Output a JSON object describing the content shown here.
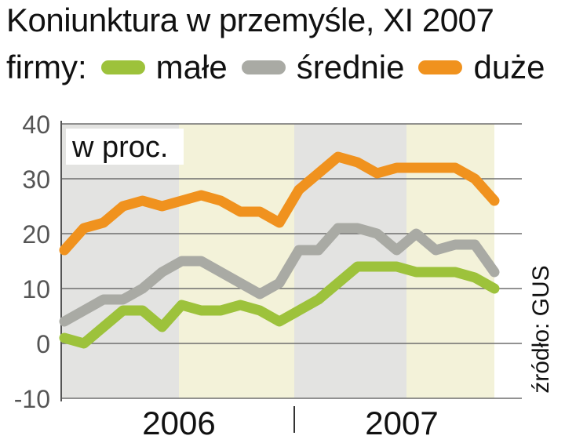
{
  "title": "Koniunktura w przemyśle, XI 2007",
  "legend": {
    "label": "firmy:",
    "items": [
      {
        "name": "małe",
        "color": "#9dc23b"
      },
      {
        "name": "średnie",
        "color": "#a9aaa4"
      },
      {
        "name": "duże",
        "color": "#f0921e"
      }
    ]
  },
  "source": "źródło: GUS",
  "chart_data": {
    "type": "line",
    "unit_label": "w proc.",
    "ylim": [
      -10,
      40
    ],
    "yticks": [
      "40",
      "30",
      "20",
      "10",
      "0",
      "-10"
    ],
    "year_labels": [
      "2006",
      "2007"
    ],
    "x": [
      "2006-01",
      "2006-02",
      "2006-03",
      "2006-04",
      "2006-05",
      "2006-06",
      "2006-07",
      "2006-08",
      "2006-09",
      "2006-10",
      "2006-11",
      "2006-12",
      "2007-01",
      "2007-02",
      "2007-03",
      "2007-04",
      "2007-05",
      "2007-06",
      "2007-07",
      "2007-08",
      "2007-09",
      "2007-10",
      "2007-11"
    ],
    "series": [
      {
        "name": "małe",
        "color": "#9dc23b",
        "values": [
          1,
          0,
          3,
          6,
          6,
          3,
          7,
          6,
          6,
          7,
          6,
          4,
          6,
          8,
          11,
          14,
          14,
          14,
          13,
          13,
          13,
          12,
          10
        ]
      },
      {
        "name": "średnie",
        "color": "#a9aaa4",
        "values": [
          4,
          6,
          8,
          8,
          10,
          13,
          15,
          15,
          13,
          11,
          9,
          11,
          17,
          17,
          21,
          21,
          20,
          17,
          20,
          17,
          18,
          18,
          13
        ]
      },
      {
        "name": "duże",
        "color": "#f0921e",
        "values": [
          17,
          21,
          22,
          25,
          26,
          25,
          26,
          27,
          26,
          24,
          24,
          22,
          28,
          31,
          34,
          33,
          31,
          32,
          32,
          32,
          32,
          30,
          26
        ]
      }
    ],
    "grid": true
  }
}
